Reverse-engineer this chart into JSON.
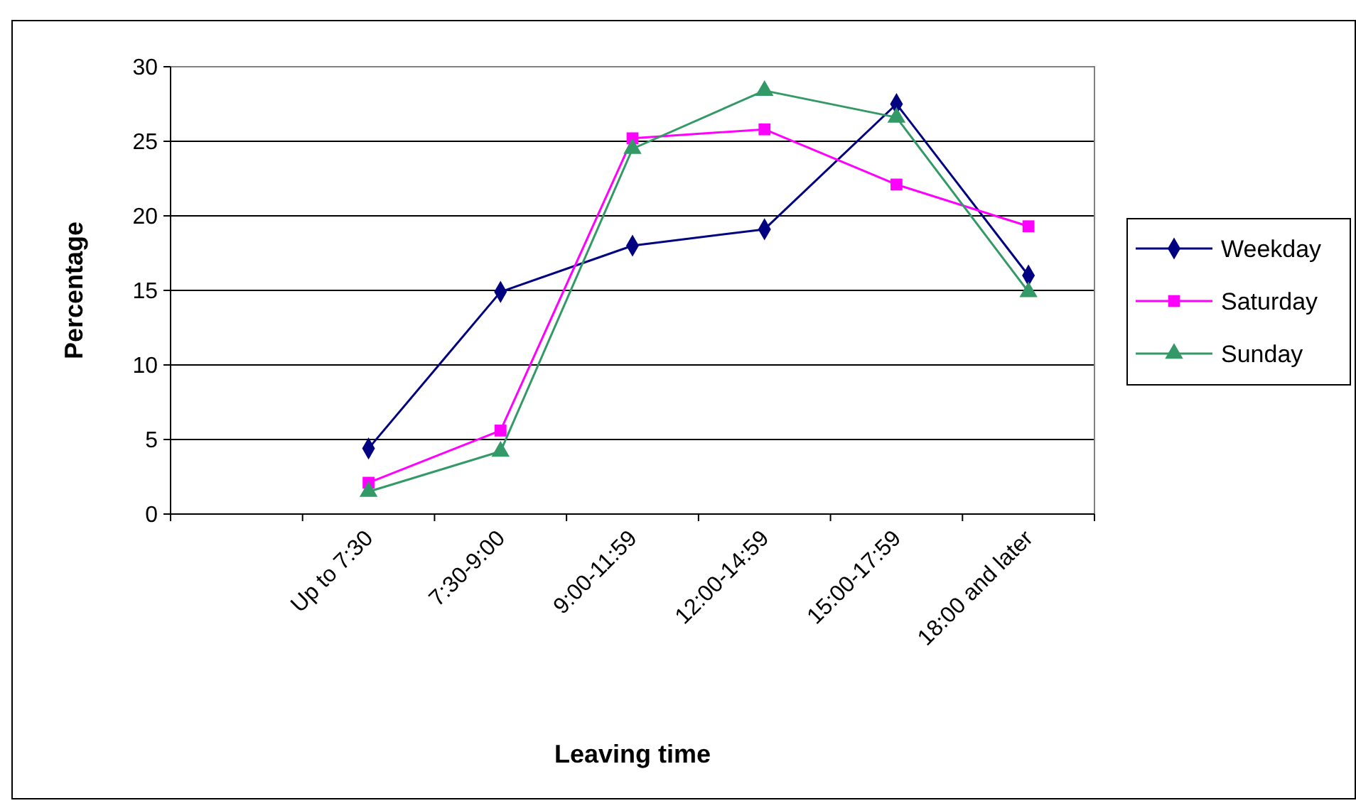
{
  "chart_data": {
    "type": "line",
    "xlabel": "Leaving time",
    "ylabel": "Percentage",
    "categories": [
      null,
      "Up to 7:30",
      "7:30-9:00",
      "9:00-11:59",
      "12:00-14:59",
      "15:00-17:59",
      "18:00 and later"
    ],
    "series": [
      {
        "name": "Weekday",
        "color": "#000080",
        "marker": "diamond",
        "values": [
          null,
          4.4,
          14.9,
          18,
          19.1,
          27.5,
          16
        ]
      },
      {
        "name": "Saturday",
        "color": "#ff00ff",
        "marker": "square",
        "values": [
          null,
          2.1,
          5.6,
          25.2,
          25.8,
          22.1,
          19.3
        ]
      },
      {
        "name": "Sunday",
        "color": "#339966",
        "marker": "triangle",
        "values": [
          null,
          1.5,
          4.2,
          24.5,
          28.4,
          26.6,
          14.9
        ]
      }
    ],
    "ylim": [
      0,
      30
    ],
    "yticks": [
      0,
      5,
      10,
      15,
      20,
      25,
      30
    ],
    "grid": "y",
    "legend": "right"
  }
}
